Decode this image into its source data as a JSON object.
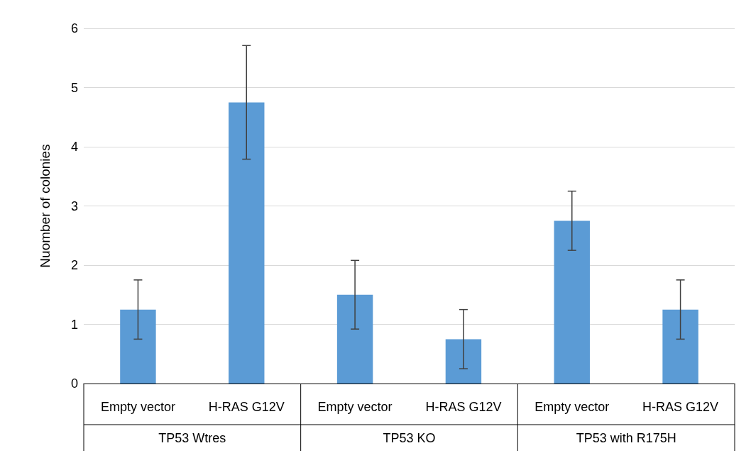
{
  "chart_data": {
    "type": "bar",
    "ylabel": "Nuomber of colonies",
    "categories": [
      "Empty vector",
      "H-RAS G12V",
      "Empty vector",
      "H-RAS G12V",
      "Empty vector",
      "H-RAS G12V"
    ],
    "values": [
      1.25,
      4.75,
      1.5,
      0.75,
      2.75,
      1.25
    ],
    "errors": [
      0.5,
      0.96,
      0.58,
      0.5,
      0.5,
      0.5
    ],
    "color": "#5b9bd5",
    "ylim": [
      0,
      6
    ],
    "yticks": [
      0,
      1,
      2,
      3,
      4,
      5,
      6
    ],
    "grid": "y",
    "annotations": [
      "TP53 Wtres",
      "TP53 KO",
      "TP53 with R175H"
    ]
  }
}
